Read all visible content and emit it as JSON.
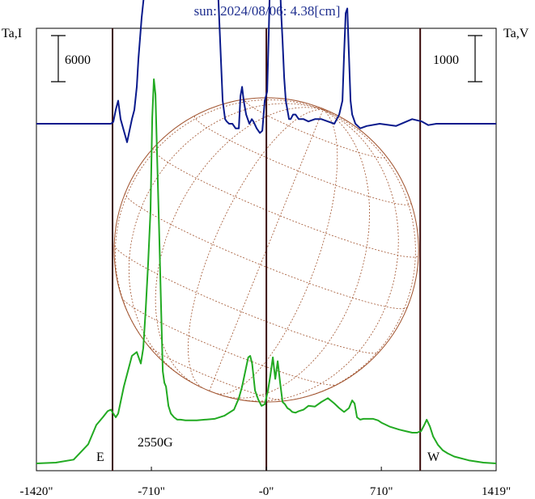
{
  "chart_data": {
    "type": "line",
    "title": "sun: 2024/08/06: 4.38[cm]",
    "ylabel_left": "Ta,I",
    "ylabel_right": "Ta,V",
    "scale_left": "6000",
    "scale_right": "1000",
    "x_ticks": [
      "-1420\"",
      "-710\"",
      "-0\"",
      "710\"",
      "1419\""
    ],
    "x_tick_values": [
      -1420,
      -710,
      0,
      710,
      1419
    ],
    "xlim": [
      -1420,
      1419
    ],
    "limb_lines": [
      -950,
      0,
      950
    ],
    "east_label": "E",
    "west_label": "W",
    "annotation": "2550G",
    "grid": false,
    "colors": {
      "stokes_i": "#22aa22",
      "stokes_v": "#0a1a8c",
      "disk": "#a0522d",
      "limb_line": "#3a0a0a"
    },
    "series": [
      {
        "id": "stokes_i",
        "x": [
          -1420,
          -1300,
          -1190,
          -1100,
          -1050,
          -1010,
          -980,
          -960,
          -945,
          -930,
          -915,
          -900,
          -880,
          -855,
          -830,
          -800,
          -775,
          -760,
          -745,
          -730,
          -715,
          -705,
          -695,
          -685,
          -675,
          -662,
          -650,
          -640,
          -630,
          -620,
          -605,
          -590,
          -570,
          -550,
          -530,
          -500,
          -470,
          -430,
          -380,
          -320,
          -260,
          -200,
          -170,
          -150,
          -130,
          -112,
          -100,
          -88,
          -70,
          -50,
          -30,
          -10,
          10,
          25,
          40,
          55,
          70,
          85,
          100,
          115,
          130,
          145,
          160,
          180,
          200,
          230,
          260,
          300,
          340,
          380,
          420,
          450,
          480,
          510,
          530,
          545,
          560,
          580,
          600,
          630,
          660,
          690,
          710,
          730,
          760,
          790,
          820,
          860,
          900,
          930,
          955,
          975,
          990,
          1010,
          1030,
          1060,
          1090,
          1120,
          1160,
          1250,
          1340,
          1419
        ],
        "values": [
          0,
          100,
          500,
          2500,
          5000,
          6000,
          6800,
          7000,
          6500,
          6000,
          6500,
          8000,
          10000,
          12000,
          14000,
          14500,
          13000,
          15000,
          20000,
          26000,
          33000,
          45000,
          50000,
          48000,
          40000,
          30000,
          20000,
          12000,
          10500,
          10000,
          7500,
          6500,
          6000,
          5700,
          5700,
          5600,
          5600,
          5600,
          5700,
          5800,
          6200,
          7000,
          8500,
          10000,
          12000,
          13800,
          14000,
          13000,
          9500,
          8300,
          7500,
          7700,
          9500,
          11500,
          13800,
          11000,
          13300,
          10500,
          8000,
          7700,
          7200,
          7000,
          6700,
          6600,
          6800,
          7000,
          7500,
          7400,
          8000,
          8500,
          7800,
          7200,
          6700,
          7200,
          8200,
          7800,
          6000,
          5700,
          5800,
          5800,
          5800,
          5600,
          5300,
          5100,
          4800,
          4600,
          4400,
          4200,
          4000,
          4000,
          4200,
          5000,
          5700,
          4800,
          3500,
          2400,
          1700,
          1300,
          900,
          400,
          100,
          0
        ]
      },
      {
        "id": "stokes_v",
        "x": [
          -1420,
          -1150,
          -1000,
          -960,
          -945,
          -930,
          -915,
          -900,
          -880,
          -860,
          -845,
          -830,
          -815,
          -800,
          -790,
          -770,
          -755,
          -740,
          -720,
          -700,
          -690,
          -680,
          -670,
          -660,
          -650,
          -640,
          -630,
          -620,
          -600,
          -560,
          -500,
          -440,
          -380,
          -330,
          -300,
          -270,
          -255,
          -245,
          -230,
          -210,
          -190,
          -170,
          -160,
          -150,
          -140,
          -125,
          -105,
          -90,
          -80,
          -60,
          -40,
          -25,
          -10,
          5,
          15,
          25,
          40,
          55,
          70,
          80,
          90,
          100,
          110,
          120,
          130,
          140,
          150,
          165,
          180,
          200,
          230,
          260,
          300,
          340,
          380,
          420,
          450,
          470,
          480,
          490,
          500,
          510,
          520,
          530,
          550,
          580,
          620,
          700,
          800,
          900,
          960,
          1000,
          1050,
          1150,
          1250,
          1419
        ],
        "values": [
          0,
          0,
          0,
          0,
          -40,
          -300,
          -500,
          -100,
          150,
          400,
          150,
          -100,
          -300,
          -800,
          -1400,
          -2300,
          -2800,
          -3300,
          -6000,
          -9500,
          -11000,
          -11500,
          -11300,
          -10500,
          -9500,
          -8300,
          -8000,
          -8200,
          -8100,
          -8000,
          -8200,
          -8000,
          -7000,
          -6000,
          -3000,
          -500,
          -100,
          -50,
          0,
          0,
          100,
          100,
          -600,
          -800,
          -500,
          -200,
          0,
          -100,
          -50,
          100,
          200,
          150,
          -500,
          -700,
          -2000,
          -3500,
          -3800,
          -3000,
          -3500,
          -3500,
          -2500,
          -1800,
          -1000,
          -500,
          -300,
          -100,
          -100,
          -200,
          -200,
          -100,
          -100,
          -50,
          -100,
          -100,
          -50,
          0,
          -200,
          -500,
          -1500,
          -2400,
          -2500,
          -1500,
          -500,
          -200,
          0,
          100,
          50,
          0,
          50,
          -100,
          -50,
          30,
          0,
          0,
          0,
          0
        ]
      }
    ]
  }
}
